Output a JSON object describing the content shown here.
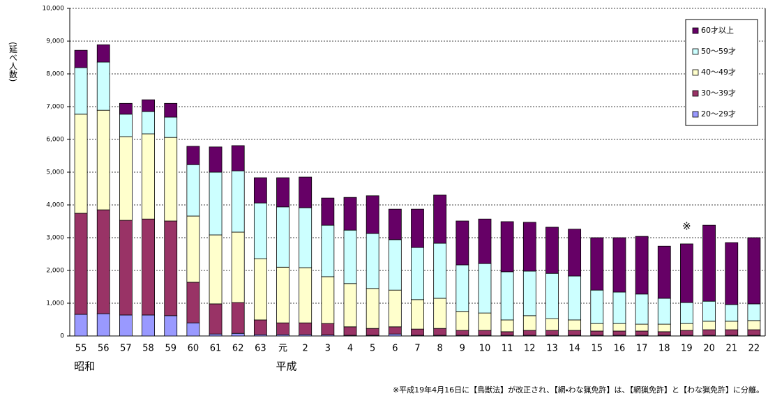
{
  "chart_data": {
    "type": "stacked_bar",
    "y_label": "(延べ人数)",
    "categories": [
      "55",
      "56",
      "57",
      "58",
      "59",
      "60",
      "61",
      "62",
      "63",
      "元",
      "2",
      "3",
      "4",
      "5",
      "6",
      "7",
      "8",
      "9",
      "10",
      "11",
      "12",
      "13",
      "14",
      "15",
      "16",
      "17",
      "18",
      "19",
      "20",
      "21",
      "22"
    ],
    "era_labels": [
      {
        "label": "昭和",
        "category": 0
      },
      {
        "label": "平成",
        "category": 9
      }
    ],
    "annotation": {
      "text": "※",
      "category": 27
    },
    "note": "※平成19年4月16日に【鳥獣法】が改正され、【網・わな猟免許】は、【網猟免許】と【わな猟免許】に分離。",
    "ylim": [
      0,
      10000
    ],
    "yticks": [
      0,
      {
        "value": 1000,
        "label": "1,000"
      },
      {
        "value": 2000,
        "label": "2,000"
      },
      {
        "value": 3000,
        "label": "3,000"
      },
      {
        "value": 4000,
        "label": "4,000"
      },
      {
        "value": 5000,
        "label": "5,000"
      },
      {
        "value": 6000,
        "label": "6,000"
      },
      {
        "value": 7000,
        "label": "7,000"
      },
      {
        "value": 8000,
        "label": "8,000"
      },
      {
        "value": 9000,
        "label": "9,000"
      },
      {
        "value": 10000,
        "label": "10,000"
      }
    ],
    "grid": true,
    "legend_position": "top-right",
    "series": [
      {
        "name": "20～29才",
        "color": "#9999ff",
        "values": [
          660,
          680,
          640,
          640,
          620,
          400,
          60,
          80,
          40,
          40,
          40,
          30,
          20,
          20,
          60,
          20,
          20,
          20,
          20,
          20,
          20,
          20,
          20,
          20,
          20,
          20,
          20,
          20,
          20,
          20,
          20
        ]
      },
      {
        "name": "30～39才",
        "color": "#993366",
        "values": [
          3085,
          3170,
          2890,
          2930,
          2890,
          1240,
          920,
          940,
          450,
          360,
          360,
          350,
          260,
          210,
          220,
          190,
          210,
          150,
          150,
          110,
          150,
          150,
          150,
          130,
          130,
          130,
          110,
          150,
          170,
          170,
          170
        ]
      },
      {
        "name": "40～49才",
        "color": "#ffffcc",
        "values": [
          3025,
          3040,
          2555,
          2600,
          2550,
          2020,
          2105,
          2150,
          1870,
          1700,
          1685,
          1430,
          1320,
          1220,
          1120,
          900,
          920,
          580,
          530,
          360,
          450,
          360,
          320,
          230,
          230,
          210,
          230,
          210,
          260,
          260,
          280
        ]
      },
      {
        "name": "50～59才",
        "color": "#ccffff",
        "values": [
          1420,
          1470,
          685,
          680,
          620,
          1570,
          1915,
          1870,
          1700,
          1840,
          1830,
          1570,
          1630,
          1680,
          1540,
          1590,
          1680,
          1420,
          1510,
          1470,
          1360,
          1380,
          1340,
          1020,
          960,
          920,
          790,
          640,
          610,
          510,
          510
        ]
      },
      {
        "name": "60才以上",
        "color": "#660066",
        "values": [
          530,
          530,
          330,
          360,
          420,
          560,
          770,
          770,
          770,
          890,
          935,
          830,
          1000,
          1150,
          930,
          1170,
          1470,
          1340,
          1360,
          1530,
          1490,
          1410,
          1430,
          1600,
          1660,
          1760,
          1590,
          1790,
          2320,
          1890,
          2020
        ]
      }
    ]
  }
}
